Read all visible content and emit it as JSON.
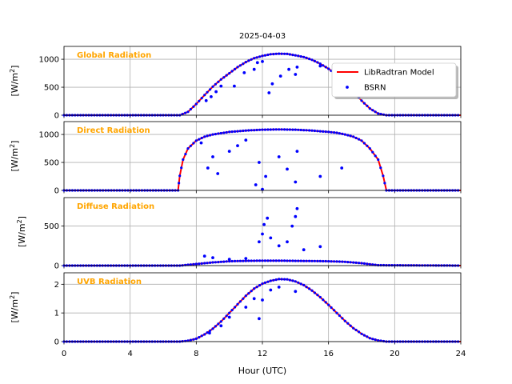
{
  "figure": {
    "title": "2025-04-03",
    "xlabel": "Hour (UTC)",
    "xticks": [
      "0",
      "4",
      "8",
      "12",
      "16",
      "20",
      "24"
    ],
    "legend": {
      "placement": "top-right of first panel",
      "entries": [
        "LibRadtran Model",
        "BSRN"
      ]
    },
    "colors": {
      "model": "#ff0000",
      "obs": "#0000ff",
      "panel_label": "#ffa500",
      "grid": "#b0b0b0"
    }
  },
  "chart_data": [
    {
      "type": "line",
      "panel_label": "Global Radiation",
      "ylabel_main": "[W/m",
      "ylabel_sup": "2",
      "ylabel_end": "]",
      "xlim": [
        0,
        24
      ],
      "ylim": [
        0,
        1230
      ],
      "yticks": [
        0,
        500,
        1000
      ],
      "grid": true,
      "series": [
        {
          "name": "LibRadtran Model",
          "x": [
            0,
            7.0,
            7.5,
            8.0,
            8.5,
            9.0,
            9.5,
            10.0,
            10.5,
            11.0,
            11.5,
            12.0,
            12.5,
            13.0,
            13.5,
            14.0,
            14.5,
            15.0,
            15.5,
            16.0,
            16.5,
            17.0,
            17.5,
            18.0,
            18.5,
            19.0,
            19.5,
            24
          ],
          "y": [
            0,
            0,
            60,
            200,
            360,
            510,
            640,
            750,
            860,
            950,
            1020,
            1060,
            1090,
            1100,
            1095,
            1070,
            1040,
            990,
            920,
            830,
            720,
            580,
            420,
            260,
            120,
            30,
            0,
            0
          ]
        },
        {
          "name": "BSRN",
          "x": [
            8.6,
            8.9,
            9.2,
            9.5,
            10.3,
            10.9,
            11.5,
            11.7,
            12.0,
            12.4,
            12.6,
            13.1,
            13.6,
            14.0,
            14.1,
            15.5
          ],
          "y": [
            260,
            330,
            420,
            520,
            520,
            760,
            820,
            940,
            960,
            400,
            560,
            700,
            820,
            730,
            860,
            880
          ]
        }
      ]
    },
    {
      "type": "line",
      "panel_label": "Direct Radiation",
      "ylabel_main": "[W/m",
      "ylabel_sup": "2",
      "ylabel_end": "]",
      "xlim": [
        0,
        24
      ],
      "ylim": [
        0,
        1230
      ],
      "yticks": [
        0,
        500,
        1000
      ],
      "grid": true,
      "series": [
        {
          "name": "LibRadtran Model",
          "x": [
            0,
            6.9,
            7.0,
            7.2,
            7.5,
            8.0,
            8.5,
            9.0,
            10.0,
            11.0,
            12.0,
            13.0,
            14.0,
            15.0,
            16.0,
            16.5,
            17.0,
            17.5,
            18.0,
            18.5,
            19.0,
            19.3,
            19.5,
            24
          ],
          "y": [
            0,
            0,
            260,
            550,
            750,
            890,
            960,
            1000,
            1045,
            1070,
            1085,
            1090,
            1085,
            1070,
            1045,
            1030,
            1000,
            960,
            890,
            750,
            550,
            260,
            0,
            0
          ]
        },
        {
          "name": "BSRN",
          "x": [
            8.3,
            8.7,
            9.0,
            9.3,
            10.0,
            10.5,
            11.0,
            11.6,
            11.8,
            12.0,
            12.2,
            13.0,
            13.5,
            14.0,
            14.1,
            15.5,
            16.8
          ],
          "y": [
            850,
            400,
            600,
            300,
            700,
            800,
            900,
            100,
            500,
            20,
            250,
            600,
            380,
            150,
            700,
            250,
            400
          ]
        }
      ]
    },
    {
      "type": "line",
      "panel_label": "Diffuse Radiation",
      "ylabel_main": "[W/m",
      "ylabel_sup": "2",
      "ylabel_end": "]",
      "xlim": [
        0,
        24
      ],
      "ylim": [
        0,
        860
      ],
      "yticks": [
        0,
        500
      ],
      "grid": true,
      "series": [
        {
          "name": "LibRadtran Model",
          "x": [
            0,
            7.0,
            8.0,
            9.0,
            10.0,
            11.0,
            12.0,
            13.0,
            14.0,
            15.0,
            16.0,
            17.0,
            18.0,
            19.0,
            24
          ],
          "y": [
            0,
            0,
            20,
            40,
            55,
            60,
            62,
            62,
            60,
            58,
            55,
            48,
            30,
            5,
            0
          ]
        },
        {
          "name": "BSRN",
          "x": [
            8.5,
            9.0,
            10.0,
            11.0,
            11.8,
            12.0,
            12.1,
            12.3,
            12.5,
            13.0,
            13.5,
            13.8,
            14.0,
            14.1,
            14.5,
            15.5
          ],
          "y": [
            120,
            100,
            80,
            90,
            300,
            400,
            520,
            600,
            350,
            250,
            300,
            500,
            620,
            720,
            200,
            240
          ]
        }
      ]
    },
    {
      "type": "line",
      "panel_label": "UVB Radiation",
      "ylabel_main": "[W/m",
      "ylabel_sup": "2",
      "ylabel_end": "]",
      "xlim": [
        0,
        24
      ],
      "ylim": [
        0,
        2.4
      ],
      "yticks": [
        0,
        1,
        2
      ],
      "grid": true,
      "series": [
        {
          "name": "LibRadtran Model",
          "x": [
            0,
            7.0,
            7.5,
            8.0,
            8.5,
            9.0,
            9.5,
            10.0,
            10.5,
            11.0,
            11.5,
            12.0,
            12.5,
            13.0,
            13.5,
            14.0,
            14.5,
            15.0,
            15.5,
            16.0,
            16.5,
            17.0,
            17.5,
            18.0,
            18.5,
            19.0,
            19.5,
            24
          ],
          "y": [
            0,
            0,
            0.03,
            0.1,
            0.25,
            0.45,
            0.7,
            1.0,
            1.3,
            1.6,
            1.85,
            2.02,
            2.12,
            2.18,
            2.17,
            2.1,
            1.97,
            1.78,
            1.55,
            1.28,
            1.0,
            0.72,
            0.47,
            0.27,
            0.12,
            0.04,
            0,
            0
          ]
        },
        {
          "name": "BSRN",
          "x": [
            8.8,
            9.5,
            10.0,
            11.0,
            11.5,
            11.8,
            12.0,
            12.5,
            13.0,
            14.0
          ],
          "y": [
            0.3,
            0.55,
            0.85,
            1.2,
            1.5,
            0.8,
            1.45,
            1.8,
            1.9,
            1.75
          ]
        }
      ]
    }
  ]
}
